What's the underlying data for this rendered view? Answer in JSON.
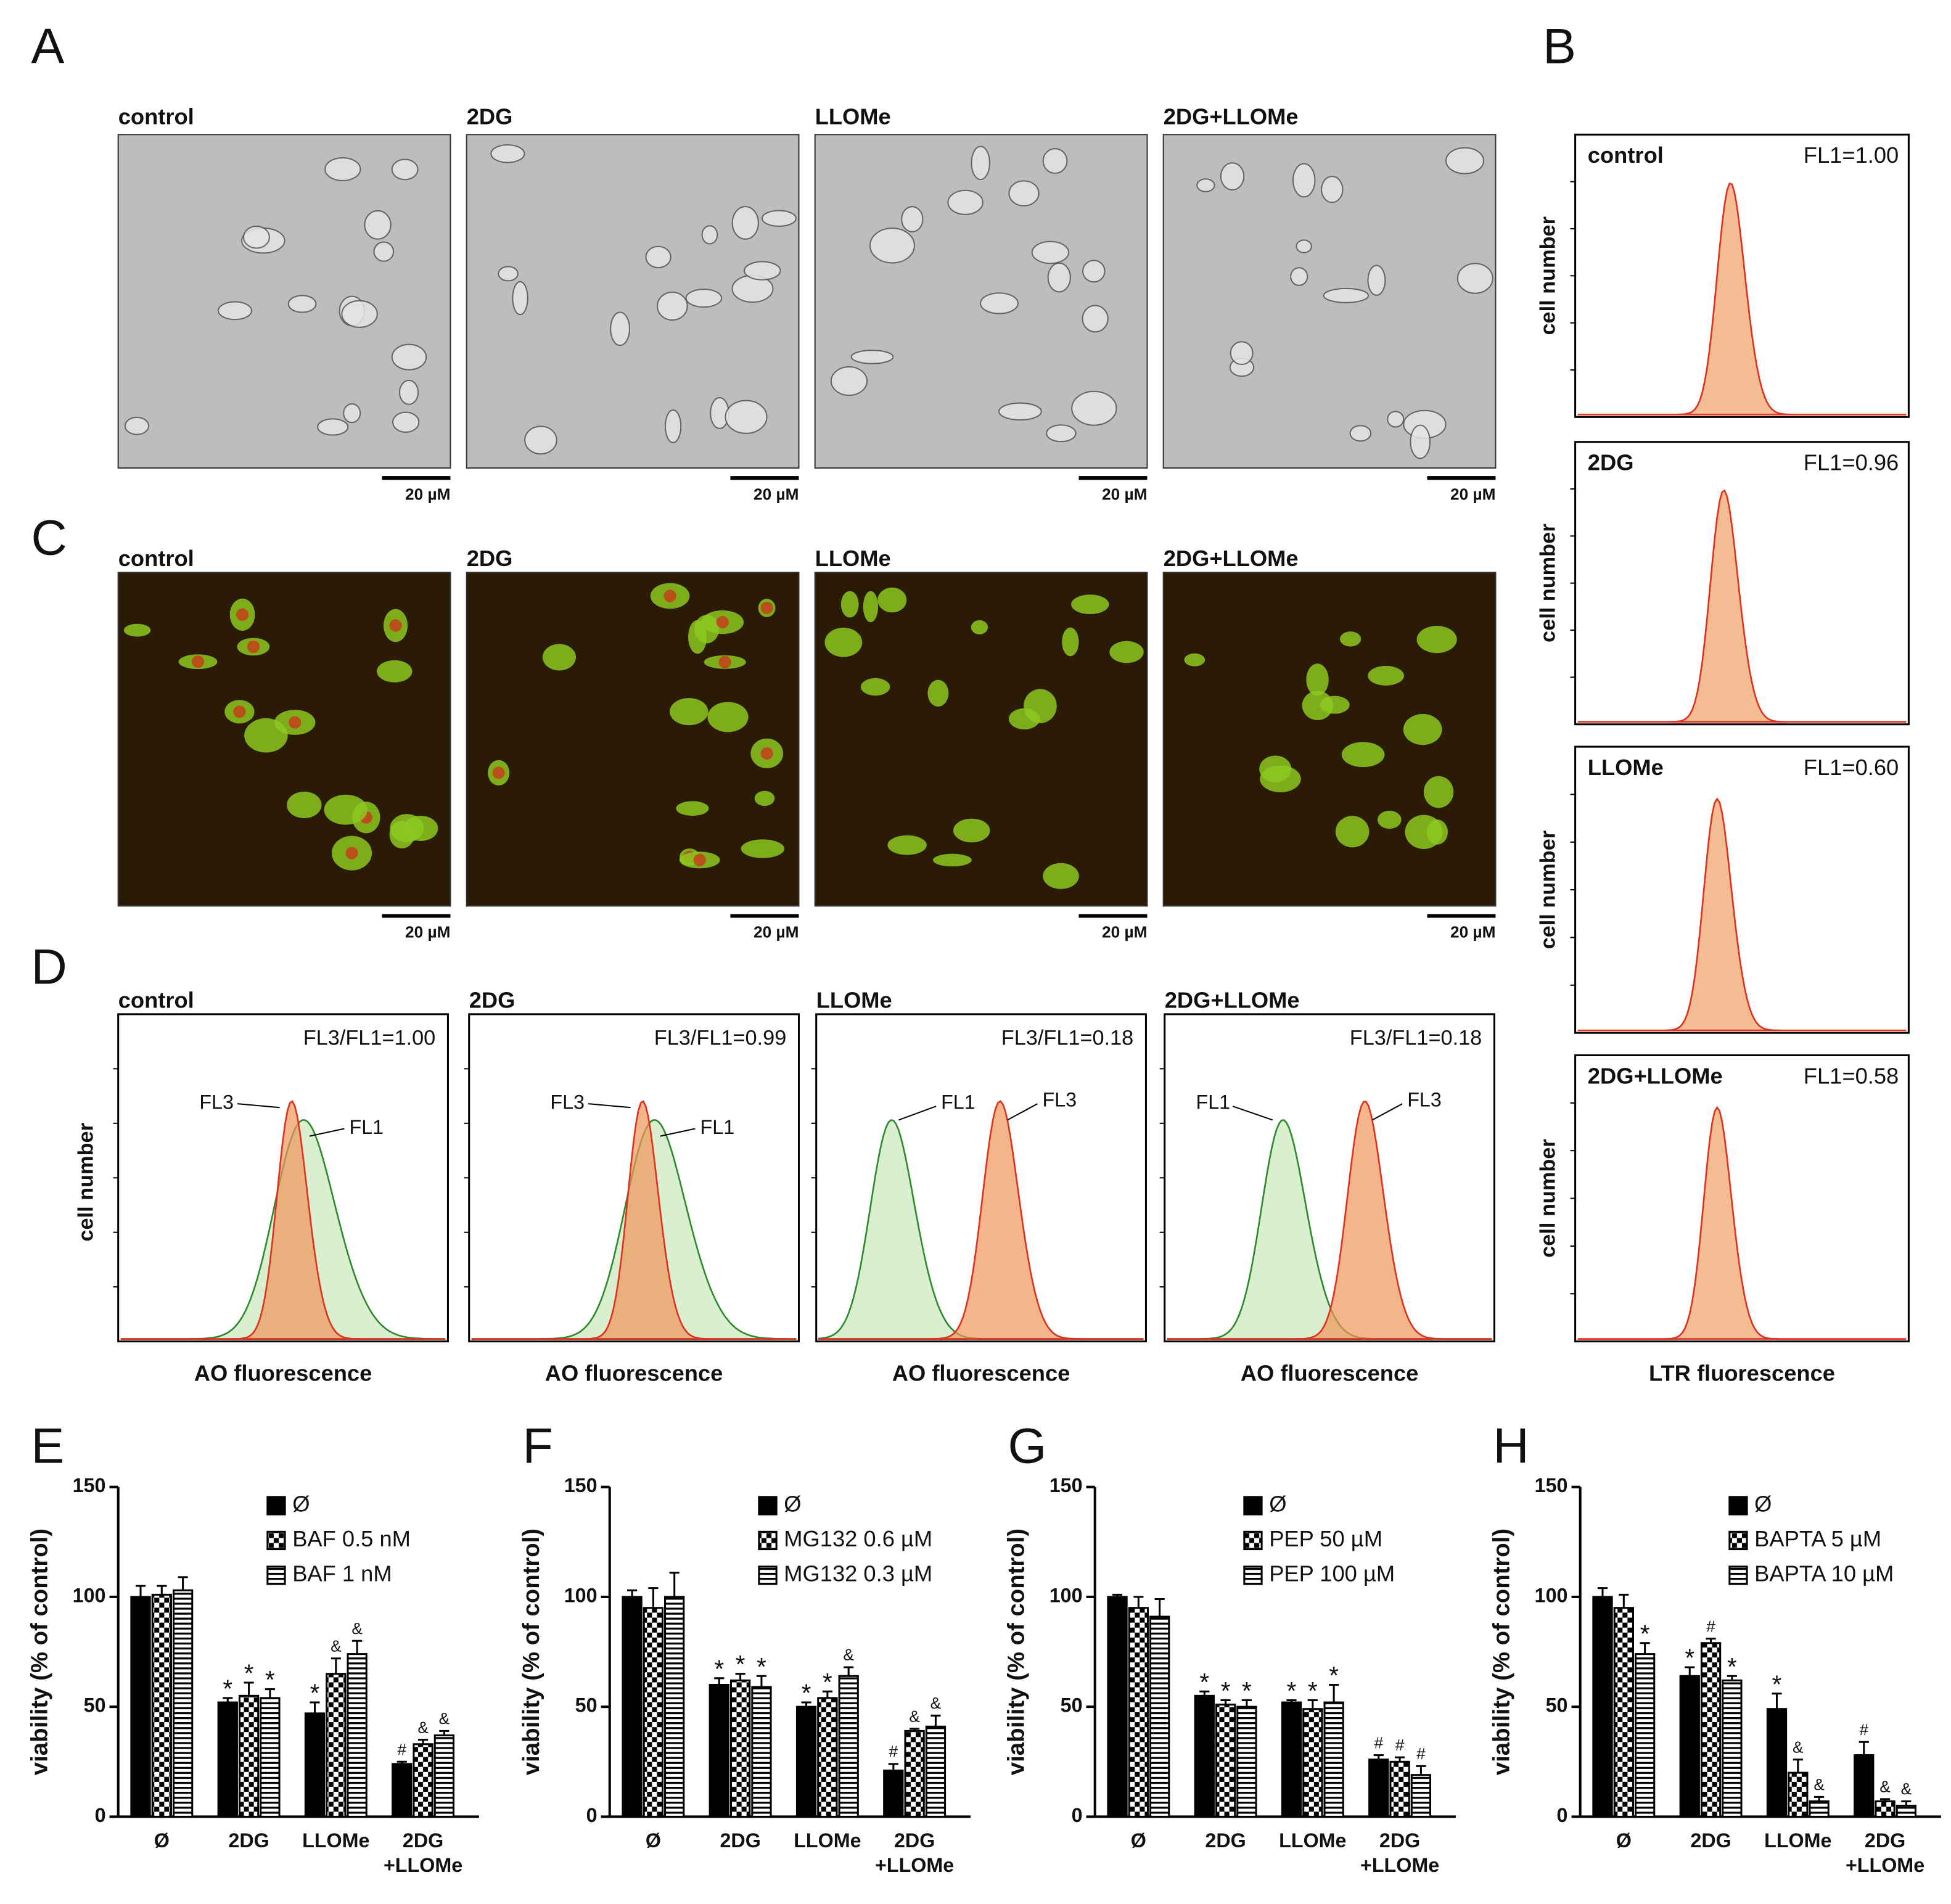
{
  "figure": {
    "scale_bar": "20 µM",
    "A": {
      "letter": "A",
      "labels": [
        "control",
        "2DG",
        "LLOMe",
        "2DG+LLOMe"
      ]
    },
    "B": {
      "letter": "B",
      "labels": [
        "control",
        "2DG",
        "LLOMe",
        "2DG+LLOMe"
      ],
      "values": [
        "FL1=1.00",
        "FL1=0.96",
        "FL1=0.60",
        "FL1=0.58"
      ],
      "ylabel": "cell number",
      "xlabel": "LTR fluorescence"
    },
    "C": {
      "letter": "C",
      "labels": [
        "control",
        "2DG",
        "LLOMe",
        "2DG+LLOMe"
      ]
    },
    "D": {
      "letter": "D",
      "labels": [
        "control",
        "2DG",
        "LLOMe",
        "2DG+LLOMe"
      ],
      "ratios": [
        "FL3/FL1=1.00",
        "FL3/FL1=0.99",
        "FL3/FL1=0.18",
        "FL3/FL1=0.18"
      ],
      "fl1": "FL1",
      "fl3": "FL3",
      "ylabel": "cell number",
      "xlabel": "AO fluorescence"
    }
  },
  "chart_data": [
    {
      "type": "bar",
      "label": "E",
      "ylabel": "viability (% of control)",
      "categories": [
        "Ø",
        "2DG",
        "LLOMe",
        "2DG\n+LLOMe"
      ],
      "ylim": [
        0,
        150
      ],
      "yticks": [
        0,
        50,
        100,
        150
      ],
      "series": [
        {
          "name": "Ø",
          "color": "#000000",
          "pattern": "solid",
          "values": [
            100,
            52,
            47,
            24
          ],
          "errors": [
            5,
            2,
            5,
            1
          ],
          "marks": [
            null,
            "*",
            "*",
            "#"
          ]
        },
        {
          "name": "BAF 0.5 nM",
          "color": "#000000",
          "pattern": "checker",
          "values": [
            101,
            55,
            65,
            33
          ],
          "errors": [
            4,
            6,
            7,
            2
          ],
          "marks": [
            null,
            "*",
            "&",
            "&"
          ]
        },
        {
          "name": "BAF 1 nM",
          "color": "#000000",
          "pattern": "stripes",
          "values": [
            103,
            54,
            74,
            37
          ],
          "errors": [
            6,
            4,
            6,
            2
          ],
          "marks": [
            null,
            "*",
            "&",
            "&"
          ]
        }
      ]
    },
    {
      "type": "bar",
      "label": "F",
      "ylabel": "viability (% of control)",
      "categories": [
        "Ø",
        "2DG",
        "LLOMe",
        "2DG\n+LLOMe"
      ],
      "ylim": [
        0,
        150
      ],
      "yticks": [
        0,
        50,
        100,
        150
      ],
      "series": [
        {
          "name": "Ø",
          "color": "#000000",
          "pattern": "solid",
          "values": [
            100,
            60,
            50,
            21
          ],
          "errors": [
            3,
            3,
            2,
            3
          ],
          "marks": [
            null,
            "*",
            "*",
            "#"
          ]
        },
        {
          "name": "MG132 0.6 µM",
          "color": "#000000",
          "pattern": "checker",
          "values": [
            95,
            62,
            54,
            39
          ],
          "errors": [
            9,
            3,
            3,
            1
          ],
          "marks": [
            null,
            "*",
            "*",
            "&"
          ]
        },
        {
          "name": "MG132 0.3 µM",
          "color": "#000000",
          "pattern": "stripes",
          "values": [
            100,
            59,
            64,
            41
          ],
          "errors": [
            11,
            5,
            4,
            5
          ],
          "marks": [
            null,
            "*",
            "&",
            "&"
          ]
        }
      ]
    },
    {
      "type": "bar",
      "label": "G",
      "ylabel": "viability (% of control)",
      "categories": [
        "Ø",
        "2DG",
        "LLOMe",
        "2DG\n+LLOMe"
      ],
      "ylim": [
        0,
        150
      ],
      "yticks": [
        0,
        50,
        100,
        150
      ],
      "series": [
        {
          "name": "Ø",
          "color": "#000000",
          "pattern": "solid",
          "values": [
            100,
            55,
            52,
            26
          ],
          "errors": [
            1,
            2,
            1,
            2
          ],
          "marks": [
            null,
            "*",
            "*",
            "#"
          ]
        },
        {
          "name": "PEP 50 µM",
          "color": "#000000",
          "pattern": "checker",
          "values": [
            95,
            51,
            49,
            25
          ],
          "errors": [
            5,
            2,
            4,
            2
          ],
          "marks": [
            null,
            "*",
            "*",
            "#"
          ]
        },
        {
          "name": "PEP 100 µM",
          "color": "#000000",
          "pattern": "stripes",
          "values": [
            91,
            50,
            52,
            19
          ],
          "errors": [
            8,
            3,
            8,
            4
          ],
          "marks": [
            null,
            "*",
            "*",
            "#"
          ]
        }
      ]
    },
    {
      "type": "bar",
      "label": "H",
      "ylabel": "viability (% of control)",
      "categories": [
        "Ø",
        "2DG",
        "LLOMe",
        "2DG\n+LLOMe"
      ],
      "ylim": [
        0,
        150
      ],
      "yticks": [
        0,
        50,
        100,
        150
      ],
      "series": [
        {
          "name": "Ø",
          "color": "#000000",
          "pattern": "solid",
          "values": [
            100,
            64,
            49,
            28
          ],
          "errors": [
            4,
            4,
            7,
            6
          ],
          "marks": [
            null,
            "*",
            "*",
            "#"
          ]
        },
        {
          "name": "BAPTA 5 µM",
          "color": "#000000",
          "pattern": "checker",
          "values": [
            95,
            79,
            20,
            7
          ],
          "errors": [
            6,
            2,
            6,
            1
          ],
          "marks": [
            null,
            "#",
            "&",
            "&"
          ]
        },
        {
          "name": "BAPTA 10 µM",
          "color": "#000000",
          "pattern": "stripes",
          "values": [
            74,
            62,
            7,
            5
          ],
          "errors": [
            5,
            2,
            2,
            2
          ],
          "marks": [
            "*",
            "*",
            "&",
            "&"
          ]
        }
      ]
    }
  ]
}
